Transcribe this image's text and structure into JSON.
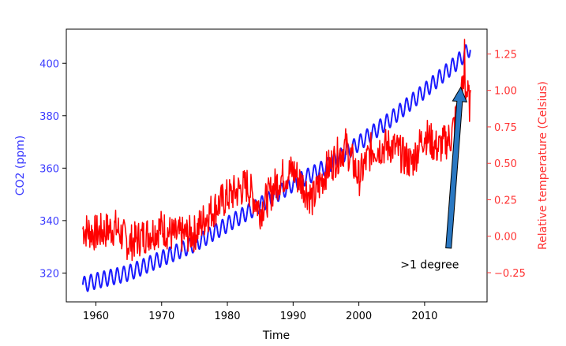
{
  "chart_data": {
    "type": "line",
    "x": {
      "label": "Time",
      "range": [
        1955.5,
        2019.5
      ],
      "ticks": [
        1960,
        1970,
        1980,
        1990,
        2000,
        2010
      ],
      "tick_labels": [
        "1960",
        "1970",
        "1980",
        "1990",
        "2000",
        "2010"
      ]
    },
    "y_left": {
      "label": "CO2 (ppm)",
      "color": "#3a3aff",
      "range": [
        309,
        413
      ],
      "ticks": [
        320,
        340,
        360,
        380,
        400
      ],
      "tick_labels": [
        "320",
        "340",
        "360",
        "380",
        "400"
      ]
    },
    "y_right": {
      "label": "Relative temperature (Celsius)",
      "color": "#ff3333",
      "range": [
        -0.45,
        1.42
      ],
      "ticks": [
        -0.25,
        0,
        0.25,
        0.5,
        0.75,
        1.0,
        1.25
      ],
      "tick_labels": [
        "−0.25",
        "0.00",
        "0.25",
        "0.50",
        "0.75",
        "1.00",
        "1.25"
      ]
    },
    "series": [
      {
        "name": "CO2",
        "axis": "left",
        "color": "#1a1aff",
        "style": "seasonal monthly",
        "x": [
          1958,
          1960,
          1965,
          1970,
          1975,
          1980,
          1985,
          1990,
          1995,
          2000,
          2005,
          2010,
          2015,
          2017
        ],
        "trend_values": [
          315.5,
          317,
          320,
          325.5,
          331,
          338.5,
          346,
          354,
          360.5,
          369.5,
          379,
          389.5,
          400.5,
          406
        ],
        "seasonal_amplitude": 3
      },
      {
        "name": "Relative temperature",
        "axis": "right",
        "color": "#ff0000",
        "style": "noisy monthly",
        "x": [
          1958,
          1960,
          1963,
          1965,
          1968,
          1970,
          1972,
          1975,
          1977,
          1980,
          1983,
          1985,
          1988,
          1990,
          1993,
          1995,
          1998,
          2000,
          2002,
          2005,
          2008,
          2010,
          2012,
          2014,
          2015,
          2016,
          2017
        ],
        "trend_values": [
          0.05,
          0.02,
          0.06,
          -0.05,
          0.02,
          0.06,
          0.0,
          0.02,
          0.15,
          0.27,
          0.35,
          0.18,
          0.4,
          0.45,
          0.25,
          0.45,
          0.62,
          0.4,
          0.6,
          0.62,
          0.5,
          0.7,
          0.6,
          0.68,
          0.85,
          1.05,
          0.88
        ],
        "noise_amplitude": 0.13,
        "peak": {
          "x": 2016.1,
          "value": 1.35
        }
      }
    ],
    "annotations": [
      {
        "text": ">1 degree",
        "xy": [
          2015.5,
          1.0
        ],
        "xytext": [
          2008,
          -0.2
        ],
        "arrow": true
      }
    ]
  }
}
